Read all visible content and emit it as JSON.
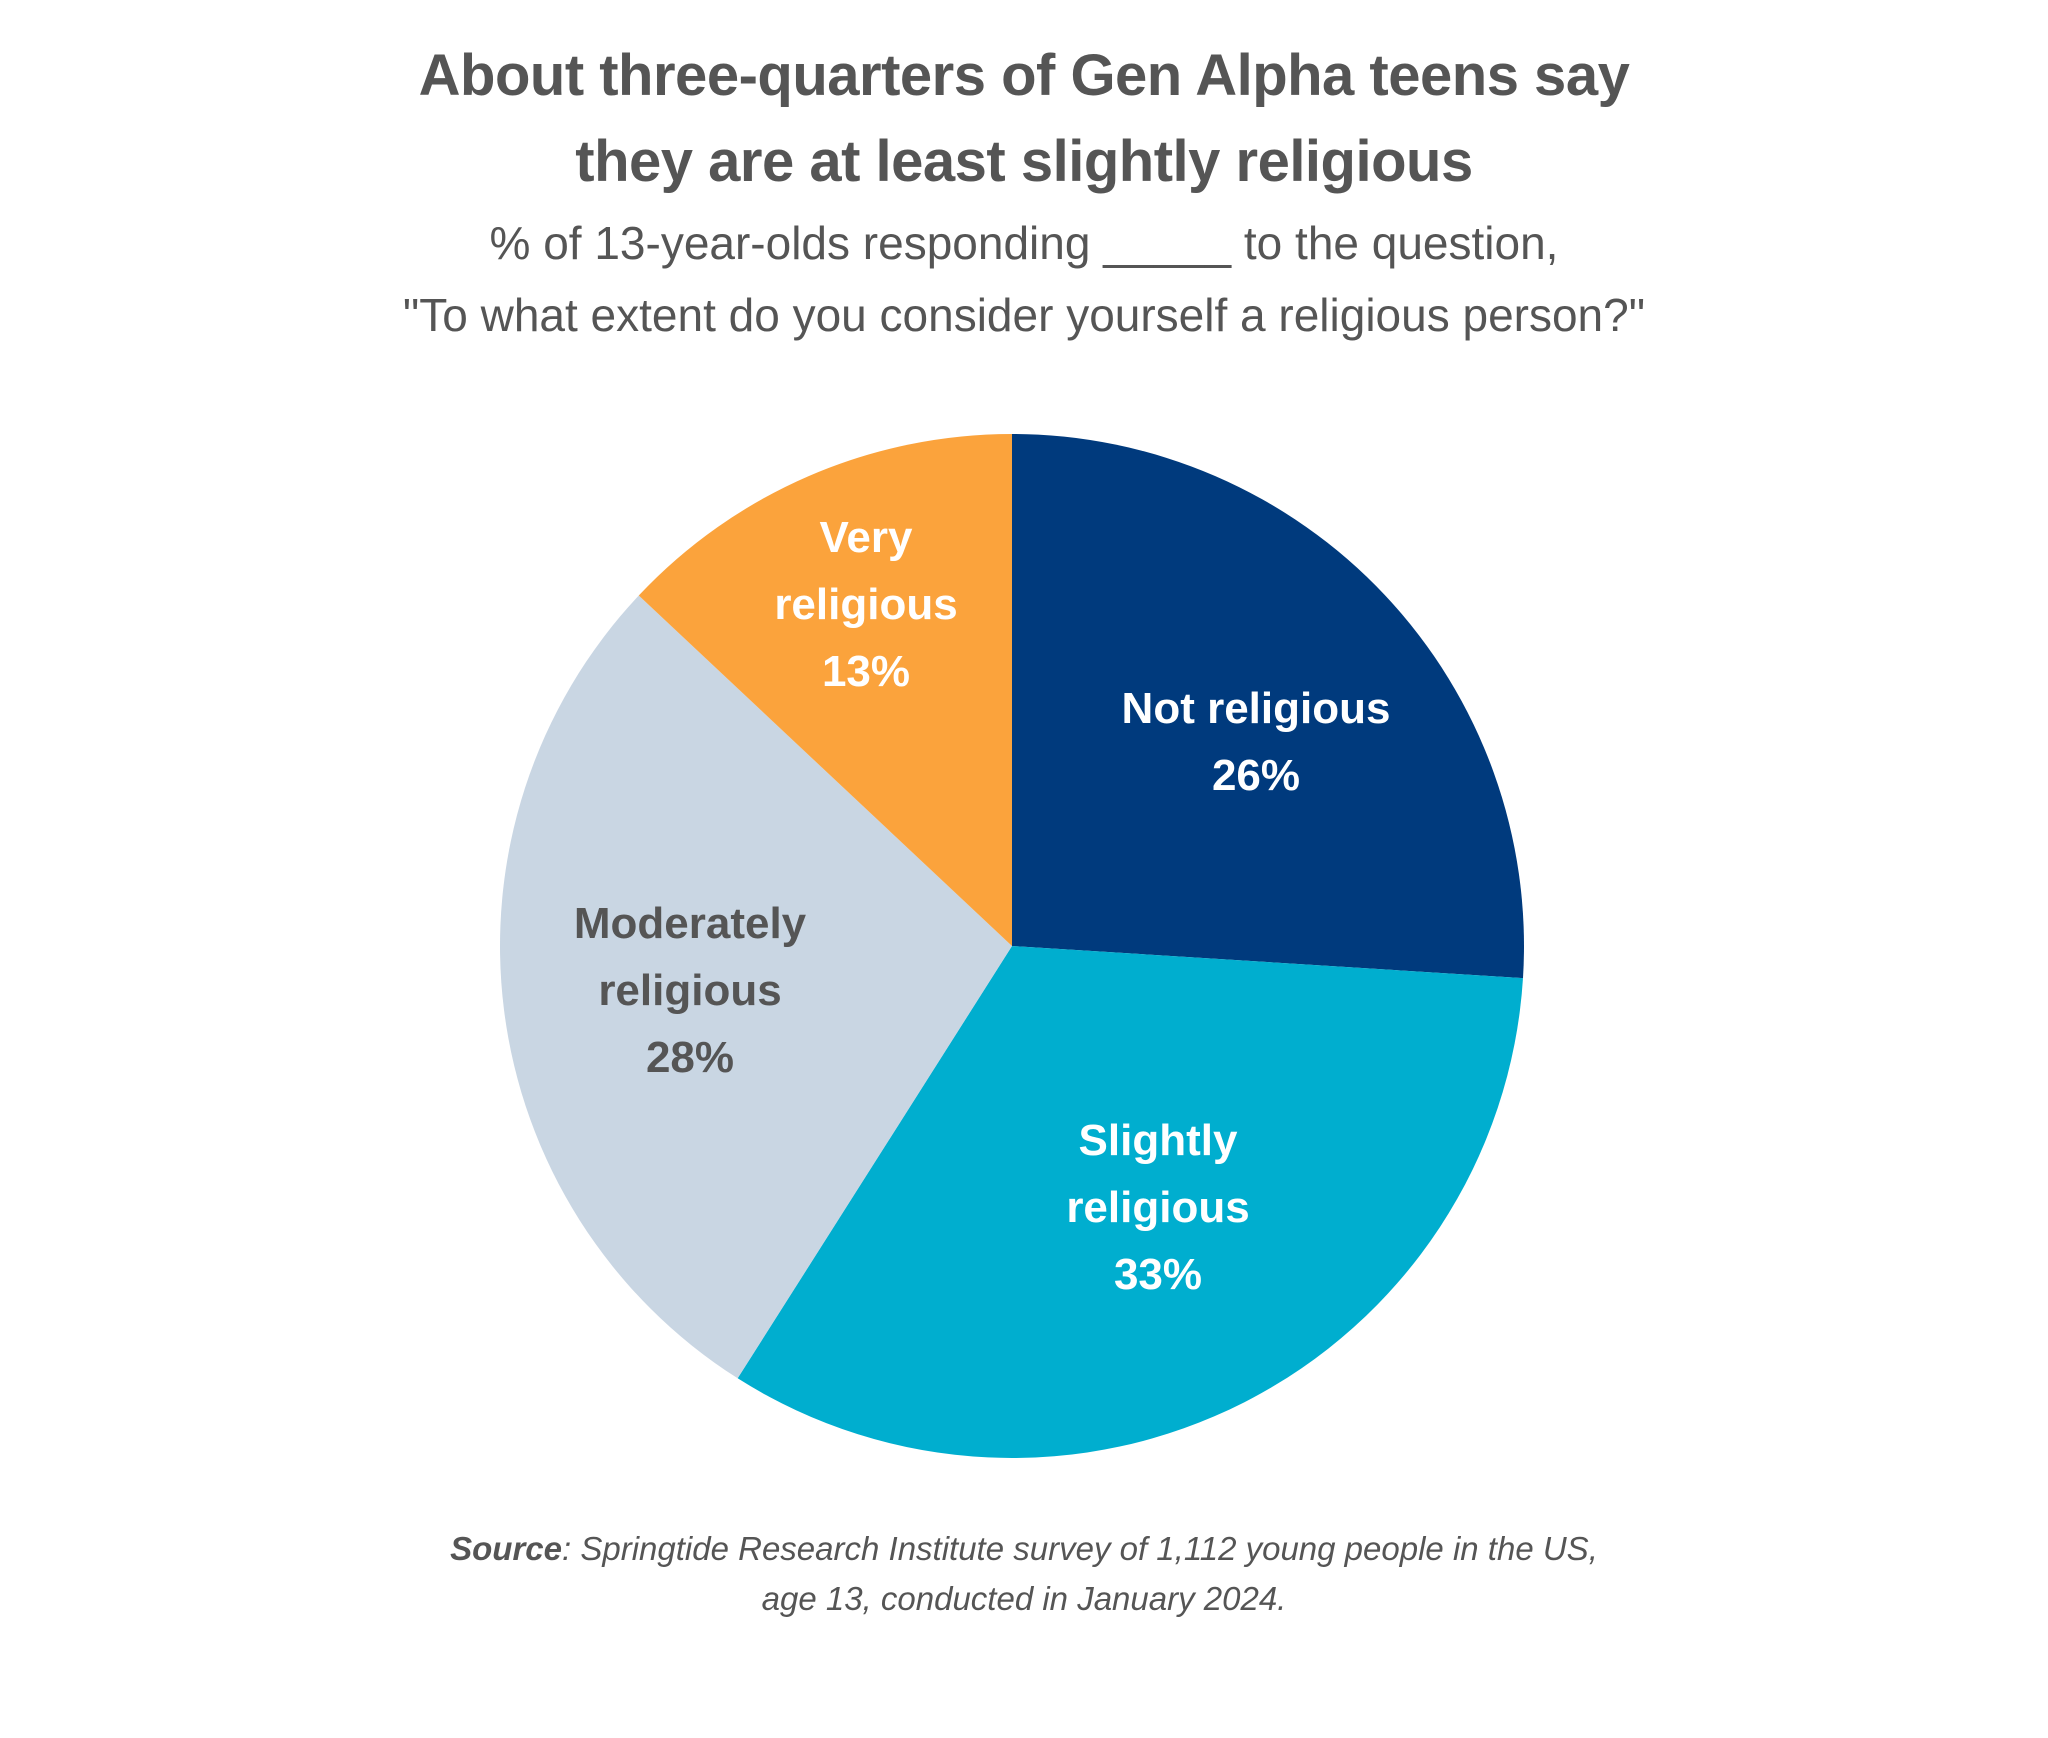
{
  "chart_data": {
    "type": "pie",
    "title": "About three-quarters of Gen Alpha teens say they are at least slightly religious",
    "title_lines": [
      "About three-quarters of Gen Alpha teens say",
      "they are at least slightly religious"
    ],
    "subtitle_lines": [
      "% of 13-year-olds responding _____ to the question,",
      "\"To what extent do you consider yourself a religious person?\""
    ],
    "start": "top, clockwise",
    "slices": [
      {
        "label_lines": [
          "Not religious"
        ],
        "label": "Not religious",
        "value": 26,
        "value_label": "26%",
        "color": "#003A7D",
        "text_color": "#FFFFFF"
      },
      {
        "label_lines": [
          "Slightly",
          "religious"
        ],
        "label": "Slightly religious",
        "value": 33,
        "value_label": "33%",
        "color": "#00AECF",
        "text_color": "#FFFFFF"
      },
      {
        "label_lines": [
          "Moderately",
          "religious"
        ],
        "label": "Moderately religious",
        "value": 28,
        "value_label": "28%",
        "color": "#C9D6E3",
        "text_color": "#555555"
      },
      {
        "label_lines": [
          "Very",
          "religious"
        ],
        "label": "Very religious",
        "value": 13,
        "value_label": "13%",
        "color": "#FBA33C",
        "text_color": "#FFFFFF"
      }
    ]
  },
  "source": {
    "bold": "Source",
    "line1": ": Springtide Research Institute survey of 1,112 young people in the US,",
    "line2": "age 13, conducted in January 2024."
  }
}
